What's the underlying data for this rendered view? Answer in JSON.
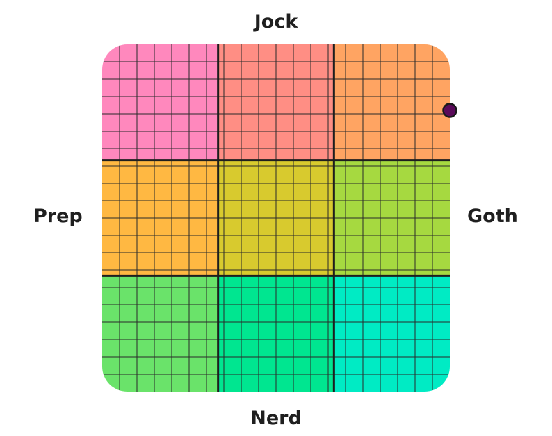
{
  "chart_data": {
    "type": "scatter",
    "title": "",
    "axes": {
      "top": "Jock",
      "bottom": "Nerd",
      "left": "Prep",
      "right": "Goth"
    },
    "xlim": [
      -10,
      10
    ],
    "ylim": [
      -10,
      10
    ],
    "grid": true,
    "grid_cells_per_side": 20,
    "region_grid": 3,
    "region_colors": [
      [
        "#ff88bd",
        "#ff8e84",
        "#ffa462"
      ],
      [
        "#ffb842",
        "#d8ca2e",
        "#a6d940"
      ],
      [
        "#6ae36a",
        "#00e690",
        "#00ebc4"
      ]
    ],
    "points": [
      {
        "x": 10,
        "y": 6.2,
        "color": "#5a0a5a"
      }
    ]
  }
}
